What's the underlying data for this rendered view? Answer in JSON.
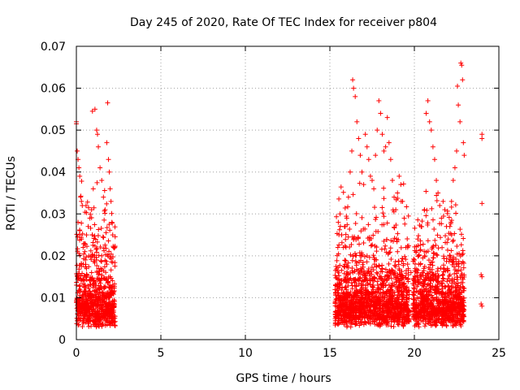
{
  "chart_data": {
    "type": "scatter",
    "title": "Day 245 of 2020, Rate Of TEC Index for receiver p804",
    "xlabel": "GPS time / hours",
    "ylabel": "ROTI / TECUs",
    "xlim": [
      0,
      25
    ],
    "ylim": [
      0,
      0.07
    ],
    "x_ticks": [
      0,
      5,
      10,
      15,
      20,
      25
    ],
    "y_ticks": [
      0,
      0.01,
      0.02,
      0.03,
      0.04,
      0.05,
      0.06,
      0.07
    ],
    "x_tick_labels": [
      "0",
      "5",
      "10",
      "15",
      "20",
      "25"
    ],
    "y_tick_labels": [
      "0",
      "0.01",
      "0.02",
      "0.03",
      "0.04",
      "0.05",
      "0.06",
      "0.07"
    ],
    "grid": true,
    "marker": "+",
    "color": "#ff0000",
    "series": [
      {
        "name": "ROTI",
        "points": [
          [
            0.0,
            0.052
          ],
          [
            0.0,
            0.0515
          ],
          [
            0.05,
            0.045
          ],
          [
            0.1,
            0.043
          ],
          [
            0.15,
            0.041
          ],
          [
            0.2,
            0.039
          ],
          [
            0.25,
            0.034
          ],
          [
            0.3,
            0.033
          ],
          [
            0.35,
            0.032
          ],
          [
            0.1,
            0.028
          ],
          [
            0.2,
            0.026
          ],
          [
            0.3,
            0.024
          ],
          [
            0.4,
            0.022
          ],
          [
            0.5,
            0.021
          ],
          [
            0.6,
            0.025
          ],
          [
            0.7,
            0.027
          ],
          [
            0.8,
            0.029
          ],
          [
            0.9,
            0.031
          ],
          [
            1.0,
            0.036
          ],
          [
            1.1,
            0.055
          ],
          [
            0.95,
            0.0545
          ],
          [
            1.2,
            0.05
          ],
          [
            1.25,
            0.049
          ],
          [
            1.3,
            0.046
          ],
          [
            1.4,
            0.041
          ],
          [
            1.5,
            0.038
          ],
          [
            1.6,
            0.034
          ],
          [
            1.7,
            0.031
          ],
          [
            1.8,
            0.047
          ],
          [
            1.85,
            0.0565
          ],
          [
            1.9,
            0.043
          ],
          [
            1.95,
            0.04
          ],
          [
            2.0,
            0.036
          ],
          [
            2.05,
            0.033
          ],
          [
            2.1,
            0.028
          ],
          [
            2.15,
            0.025
          ],
          [
            2.2,
            0.022
          ],
          [
            0.3,
            0.018
          ],
          [
            0.6,
            0.017
          ],
          [
            0.9,
            0.016
          ],
          [
            1.2,
            0.019
          ],
          [
            1.5,
            0.02
          ],
          [
            1.8,
            0.018
          ],
          [
            2.0,
            0.015
          ],
          [
            2.1,
            0.011
          ],
          [
            2.15,
            0.009
          ],
          [
            2.2,
            0.007
          ],
          [
            15.5,
            0.028
          ],
          [
            15.6,
            0.03
          ],
          [
            15.7,
            0.025
          ],
          [
            15.8,
            0.022
          ],
          [
            15.9,
            0.027
          ],
          [
            16.0,
            0.029
          ],
          [
            16.1,
            0.034
          ],
          [
            16.2,
            0.04
          ],
          [
            16.3,
            0.045
          ],
          [
            16.35,
            0.062
          ],
          [
            16.4,
            0.06
          ],
          [
            16.5,
            0.058
          ],
          [
            16.6,
            0.052
          ],
          [
            16.7,
            0.048
          ],
          [
            16.8,
            0.044
          ],
          [
            16.9,
            0.04
          ],
          [
            17.0,
            0.037
          ],
          [
            17.1,
            0.049
          ],
          [
            17.2,
            0.046
          ],
          [
            17.3,
            0.043
          ],
          [
            17.4,
            0.039
          ],
          [
            17.5,
            0.038
          ],
          [
            17.6,
            0.036
          ],
          [
            17.7,
            0.044
          ],
          [
            17.8,
            0.05
          ],
          [
            17.9,
            0.057
          ],
          [
            18.0,
            0.054
          ],
          [
            18.1,
            0.049
          ],
          [
            18.2,
            0.045
          ],
          [
            18.3,
            0.046
          ],
          [
            18.4,
            0.053
          ],
          [
            18.5,
            0.047
          ],
          [
            18.6,
            0.043
          ],
          [
            18.7,
            0.038
          ],
          [
            18.8,
            0.034
          ],
          [
            18.9,
            0.031
          ],
          [
            19.0,
            0.035
          ],
          [
            19.1,
            0.039
          ],
          [
            19.2,
            0.037
          ],
          [
            19.3,
            0.033
          ],
          [
            19.4,
            0.029
          ],
          [
            19.5,
            0.022
          ],
          [
            19.6,
            0.018
          ],
          [
            19.8,
            0.016
          ],
          [
            20.0,
            0.019
          ],
          [
            20.2,
            0.024
          ],
          [
            20.4,
            0.027
          ],
          [
            20.6,
            0.031
          ],
          [
            20.7,
            0.054
          ],
          [
            20.8,
            0.057
          ],
          [
            20.9,
            0.052
          ],
          [
            21.0,
            0.05
          ],
          [
            21.1,
            0.046
          ],
          [
            21.2,
            0.043
          ],
          [
            21.3,
            0.038
          ],
          [
            21.4,
            0.035
          ],
          [
            21.5,
            0.032
          ],
          [
            21.6,
            0.029
          ],
          [
            21.7,
            0.033
          ],
          [
            21.8,
            0.031
          ],
          [
            21.9,
            0.027
          ],
          [
            22.0,
            0.024
          ],
          [
            22.1,
            0.027
          ],
          [
            22.2,
            0.033
          ],
          [
            22.3,
            0.038
          ],
          [
            22.4,
            0.041
          ],
          [
            22.5,
            0.045
          ],
          [
            22.55,
            0.0605
          ],
          [
            22.6,
            0.056
          ],
          [
            22.7,
            0.052
          ],
          [
            22.75,
            0.066
          ],
          [
            22.8,
            0.0655
          ],
          [
            22.85,
            0.062
          ],
          [
            22.9,
            0.047
          ],
          [
            22.95,
            0.044
          ],
          [
            24.0,
            0.049
          ],
          [
            24.0,
            0.048
          ],
          [
            24.0,
            0.0325
          ],
          [
            23.95,
            0.0155
          ],
          [
            24.0,
            0.015
          ],
          [
            23.95,
            0.0085
          ],
          [
            24.0,
            0.008
          ]
        ]
      }
    ],
    "dense_bands": [
      {
        "x_range": [
          0,
          2.3
        ],
        "y_range": [
          0.003,
          0.016
        ]
      },
      {
        "x_range": [
          15.3,
          19.7
        ],
        "y_range": [
          0.003,
          0.016
        ]
      },
      {
        "x_range": [
          19.9,
          22.95
        ],
        "y_range": [
          0.003,
          0.016
        ]
      }
    ]
  }
}
